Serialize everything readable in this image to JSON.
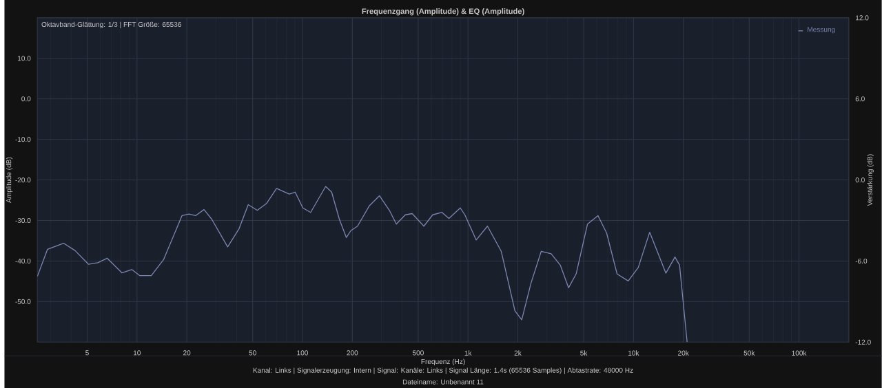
{
  "chart_data": {
    "type": "line",
    "title": "Frequenzgang (Amplitude) & EQ (Amplitude)",
    "xlabel": "Frequenz (Hz)",
    "ylabel": "Amplitude (dB)",
    "y2label": "Verstärkung (dB)",
    "log": "x",
    "grid": true,
    "legend": "top right",
    "marker": "none",
    "line_style": "solid",
    "xlim": [
      2.5,
      200000
    ],
    "ylim": [
      -60,
      20
    ],
    "y2lim": [
      -12,
      12
    ],
    "xticks": [
      5,
      10,
      20,
      50,
      100,
      200,
      500,
      {
        "value": 1000,
        "label": "1k"
      },
      {
        "value": 2000,
        "label": "2k"
      },
      {
        "value": 5000,
        "label": "5k"
      },
      {
        "value": 10000,
        "label": "10k"
      },
      {
        "value": 20000,
        "label": "20k"
      },
      {
        "value": 50000,
        "label": "50k"
      },
      {
        "value": 100000,
        "label": "100k"
      }
    ],
    "yticks": [
      {
        "value": -50,
        "label": "-50.0"
      },
      {
        "value": -40,
        "label": "-40.0"
      },
      {
        "value": -30,
        "label": "-30.0"
      },
      {
        "value": -20,
        "label": "-20.0"
      },
      {
        "value": -10,
        "label": "-10.0"
      },
      {
        "value": 0,
        "label": "0.0"
      },
      {
        "value": 10,
        "label": "10.0"
      }
    ],
    "y2ticks": [
      {
        "value": -12,
        "label": "-12.0"
      },
      {
        "value": -6,
        "label": "-6.0"
      },
      {
        "value": 0,
        "label": "0.0"
      },
      {
        "value": 6,
        "label": "6.0"
      },
      {
        "value": 12,
        "label": "12.0"
      }
    ],
    "annotations": [
      "Oktavband-Glättung: 1/3 | FFT Größe: 65536",
      "Kanal: Links | Signalerzeugung: Intern | Signal: Kanäle: Links | Signal Länge: 1.4s (65536 Samples) | Abtastrate: 48000 Hz",
      "Dateiname: Unbenannt 11"
    ],
    "series": [
      {
        "name": "Messung",
        "color": "#7b86b0",
        "x": [
          2.5,
          2.88,
          3.6,
          4.22,
          5.1,
          5.8,
          6.6,
          8.1,
          9.3,
          10.4,
          12.2,
          14.5,
          18.7,
          20.6,
          22.6,
          25.4,
          28.3,
          35.3,
          41.4,
          47,
          53.3,
          60.6,
          69.7,
          83.2,
          90.3,
          100.5,
          112,
          138,
          150,
          167,
          184,
          196,
          215,
          253,
          292,
          335,
          369,
          418,
          460,
          541,
          612,
          696,
          767,
          898,
          957,
          1120,
          1311,
          1588,
          1921,
          2112,
          2400,
          2770,
          3180,
          3610,
          4050,
          4500,
          5270,
          6100,
          6880,
          7960,
          9290,
          10680,
          12520,
          15680,
          17800,
          18980,
          21080
        ],
        "values": [
          -43.8,
          -37.1,
          -35.6,
          -37.4,
          -40.8,
          -40.4,
          -39.3,
          -42.9,
          -42.1,
          -43.6,
          -43.6,
          -39.6,
          -28.8,
          -28.4,
          -28.8,
          -27.3,
          -29.7,
          -36.5,
          -32.0,
          -26.1,
          -27.5,
          -25.8,
          -22.1,
          -23.5,
          -23.0,
          -26.9,
          -28.0,
          -21.6,
          -23.0,
          -29.7,
          -34.2,
          -32.5,
          -31.4,
          -26.4,
          -23.9,
          -27.5,
          -30.9,
          -28.6,
          -28.3,
          -31.4,
          -28.6,
          -28.0,
          -29.5,
          -26.9,
          -28.6,
          -34.8,
          -31.4,
          -37.6,
          -52.3,
          -54.5,
          -45.5,
          -37.6,
          -38.2,
          -41.0,
          -46.6,
          -43.2,
          -30.9,
          -28.8,
          -33.1,
          -43.2,
          -44.9,
          -41.6,
          -32.9,
          -43.0,
          -39.0,
          -41.0,
          -60
        ]
      }
    ]
  }
}
